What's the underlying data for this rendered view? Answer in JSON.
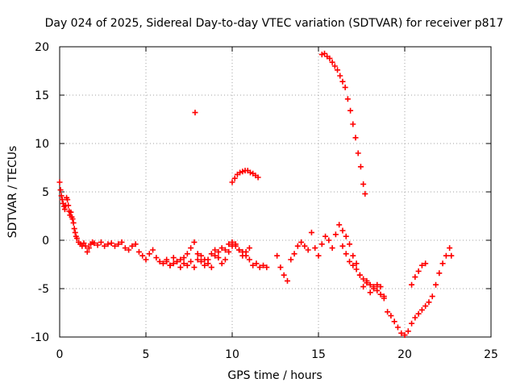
{
  "chart_data": {
    "type": "scatter",
    "title": "Day 024 of 2025, Sidereal Day-to-day VTEC variation (SDTVAR) for receiver p817",
    "xlabel": "GPS time / hours",
    "ylabel": "SDTVAR / TECUs",
    "xlim": [
      0,
      25
    ],
    "ylim": [
      -10,
      20
    ],
    "xticks": [
      0,
      5,
      10,
      15,
      20,
      25
    ],
    "yticks": [
      -10,
      -5,
      0,
      5,
      10,
      15,
      20
    ],
    "xtick_labels": [
      "0",
      "5",
      "10",
      "15",
      "20",
      "25"
    ],
    "ytick_labels": [
      "-10",
      "-5",
      "0",
      "5",
      "10",
      "15",
      "20"
    ],
    "grid": true,
    "marker": "plus",
    "series": [
      {
        "name": "sdtvar-main",
        "color": "#ff0000",
        "x": [
          0.0,
          0.05,
          0.1,
          0.15,
          0.2,
          0.25,
          0.3,
          0.35,
          0.4,
          0.45,
          0.5,
          0.55,
          0.6,
          0.65,
          0.7,
          0.75,
          0.8,
          0.85,
          0.9,
          0.95,
          1.0,
          1.1,
          1.2,
          1.3,
          1.4,
          1.5,
          1.6,
          1.7,
          1.8,
          1.9,
          2.0,
          2.2,
          2.4,
          2.6,
          2.8,
          3.0,
          3.2,
          3.4,
          3.6,
          3.8,
          4.0,
          4.2,
          4.4,
          4.6,
          4.8,
          5.0,
          5.2,
          5.4,
          5.6,
          5.8,
          6.0,
          6.2,
          6.4,
          6.6,
          6.8,
          7.0,
          7.2,
          7.4,
          7.6,
          7.8,
          8.0,
          8.2,
          8.4,
          8.6,
          8.8,
          9.0,
          9.2,
          9.4,
          9.6,
          9.8,
          10.0,
          10.2,
          10.4,
          10.6,
          10.8,
          11.0,
          11.2,
          11.4,
          11.6,
          11.8,
          12.0
        ],
        "y": [
          6.0,
          5.2,
          4.6,
          4.2,
          3.8,
          3.5,
          3.2,
          3.6,
          4.4,
          4.2,
          3.6,
          3.0,
          2.6,
          2.9,
          2.4,
          2.2,
          1.8,
          1.2,
          0.8,
          0.4,
          0.2,
          -0.2,
          -0.4,
          -0.6,
          -0.3,
          -0.6,
          -1.2,
          -0.8,
          -0.4,
          -0.2,
          -0.3,
          -0.5,
          -0.2,
          -0.6,
          -0.4,
          -0.3,
          -0.6,
          -0.4,
          -0.2,
          -0.8,
          -1.0,
          -0.6,
          -0.4,
          -1.2,
          -1.6,
          -2.0,
          -1.4,
          -1.0,
          -1.8,
          -2.2,
          -2.4,
          -2.0,
          -2.6,
          -1.8,
          -2.2,
          -2.8,
          -2.4,
          -2.6,
          -2.2,
          -2.8,
          -2.0,
          -1.6,
          -2.0,
          -2.4,
          -2.8,
          -1.6,
          -1.2,
          -0.8,
          -1.0,
          -0.4,
          -0.2,
          -0.6,
          -1.0,
          -1.2,
          -1.6,
          -2.0,
          -2.6,
          -2.4,
          -2.8,
          -2.6,
          -2.8
        ]
      },
      {
        "name": "sdtvar-branch",
        "color": "#ff0000",
        "x": [
          6.2,
          6.4,
          6.6,
          6.8,
          7.0,
          7.2,
          7.4,
          7.6,
          7.8,
          8.0,
          8.2,
          8.4,
          8.6,
          8.8,
          9.0,
          9.2,
          9.4,
          9.6,
          9.8,
          10.0,
          10.2,
          10.4,
          10.6,
          10.8,
          11.0
        ],
        "y": [
          -2.2,
          -2.6,
          -2.4,
          -2.2,
          -2.0,
          -1.8,
          -1.4,
          -0.8,
          -0.2,
          -1.4,
          -2.2,
          -2.6,
          -2.0,
          -1.4,
          -1.0,
          -1.8,
          -2.4,
          -2.0,
          -1.2,
          -0.6,
          -0.4,
          -1.0,
          -1.6,
          -1.2,
          -0.8
        ]
      },
      {
        "name": "sdtvar-isolated",
        "color": "#ff0000",
        "x": [
          7.85
        ],
        "y": [
          13.2
        ]
      },
      {
        "name": "sdtvar-arc-10",
        "color": "#ff0000",
        "x": [
          10.0,
          10.15,
          10.3,
          10.45,
          10.6,
          10.75,
          10.9,
          11.05,
          11.2,
          11.35,
          11.5
        ],
        "y": [
          6.0,
          6.4,
          6.8,
          7.0,
          7.1,
          7.2,
          7.2,
          7.0,
          6.9,
          6.7,
          6.5
        ]
      },
      {
        "name": "sdtvar-mid",
        "color": "#ff0000",
        "x": [
          12.6,
          12.8,
          13.0,
          13.2,
          13.4,
          13.6,
          13.8,
          14.0,
          14.2,
          14.4,
          14.6,
          14.8,
          15.0,
          15.2,
          15.4,
          15.6,
          15.8,
          16.0,
          16.2,
          16.4,
          16.6,
          16.8,
          17.0,
          17.2,
          17.4,
          17.6,
          17.8,
          18.0,
          18.2,
          18.4,
          18.6,
          18.8,
          19.0,
          19.2,
          19.4,
          19.6,
          19.8,
          20.0,
          20.2,
          20.4,
          20.6,
          20.8,
          21.0,
          21.2,
          21.4,
          21.6,
          21.8,
          22.0,
          22.2,
          22.4,
          22.6,
          22.7
        ],
        "y": [
          -1.6,
          -2.8,
          -3.6,
          -4.2,
          -2.0,
          -1.4,
          -0.6,
          -0.2,
          -0.6,
          -1.0,
          0.8,
          -0.8,
          -1.6,
          -0.4,
          0.4,
          0.0,
          -0.8,
          0.6,
          1.6,
          1.0,
          0.4,
          -0.4,
          -1.6,
          -2.4,
          -3.6,
          -4.8,
          -4.2,
          -5.4,
          -5.0,
          -4.6,
          -4.8,
          -6.0,
          -7.4,
          -7.8,
          -8.4,
          -9.0,
          -9.6,
          -9.8,
          -9.4,
          -8.6,
          -8.0,
          -7.6,
          -7.2,
          -6.8,
          -6.4,
          -5.8,
          -4.6,
          -3.4,
          -2.4,
          -1.6,
          -0.8,
          -1.6
        ]
      },
      {
        "name": "sdtvar-lower-branch",
        "color": "#ff0000",
        "x": [
          16.4,
          16.6,
          16.8,
          17.0,
          17.2,
          17.4,
          17.6,
          17.8,
          18.0,
          18.2,
          18.4,
          18.6,
          18.8
        ],
        "y": [
          -0.6,
          -1.4,
          -2.2,
          -2.6,
          -3.0,
          -3.6,
          -4.0,
          -4.4,
          -4.6,
          -4.8,
          -5.2,
          -5.6,
          -5.8
        ]
      },
      {
        "name": "sdtvar-spur-20",
        "color": "#ff0000",
        "x": [
          20.4,
          20.6,
          20.8,
          21.0,
          21.2
        ],
        "y": [
          -4.6,
          -3.8,
          -3.2,
          -2.6,
          -2.4
        ]
      },
      {
        "name": "sdtvar-drop-15",
        "color": "#ff0000",
        "x": [
          15.2,
          15.35,
          15.5,
          15.65,
          15.8,
          15.95,
          16.1,
          16.25,
          16.4,
          16.55,
          16.7,
          16.85,
          17.0,
          17.15,
          17.3,
          17.45,
          17.6,
          17.7
        ],
        "y": [
          19.2,
          19.3,
          19.0,
          18.8,
          18.4,
          18.0,
          17.6,
          17.0,
          16.4,
          15.8,
          14.6,
          13.4,
          12.0,
          10.6,
          9.0,
          7.6,
          5.8,
          4.8
        ]
      }
    ]
  }
}
